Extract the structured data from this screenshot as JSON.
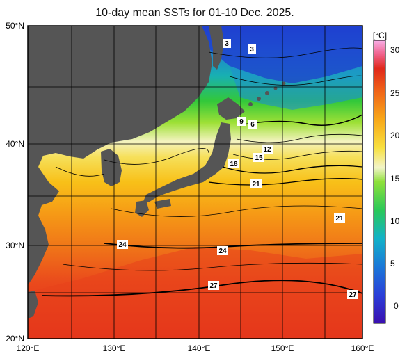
{
  "title": "10-day mean SSTs for 01-10 Dec. 2025.",
  "lat_labels": [
    "50°N",
    "40°N",
    "30°N",
    "20°N"
  ],
  "lon_labels": [
    "120°E",
    "130°E",
    "140°E",
    "150°E",
    "160°E"
  ],
  "colorbar": {
    "unit": "[°C]",
    "ticks": [
      "30",
      "25",
      "20",
      "15",
      "10",
      "5",
      "0"
    ]
  },
  "contour_labels": [
    "3",
    "3",
    "9",
    "6",
    "12",
    "15",
    "18",
    "21",
    "21",
    "24",
    "24",
    "27",
    "27"
  ],
  "colors": {
    "land": "#555555",
    "warm": "#e8351c",
    "cold": "#1f35c9"
  }
}
